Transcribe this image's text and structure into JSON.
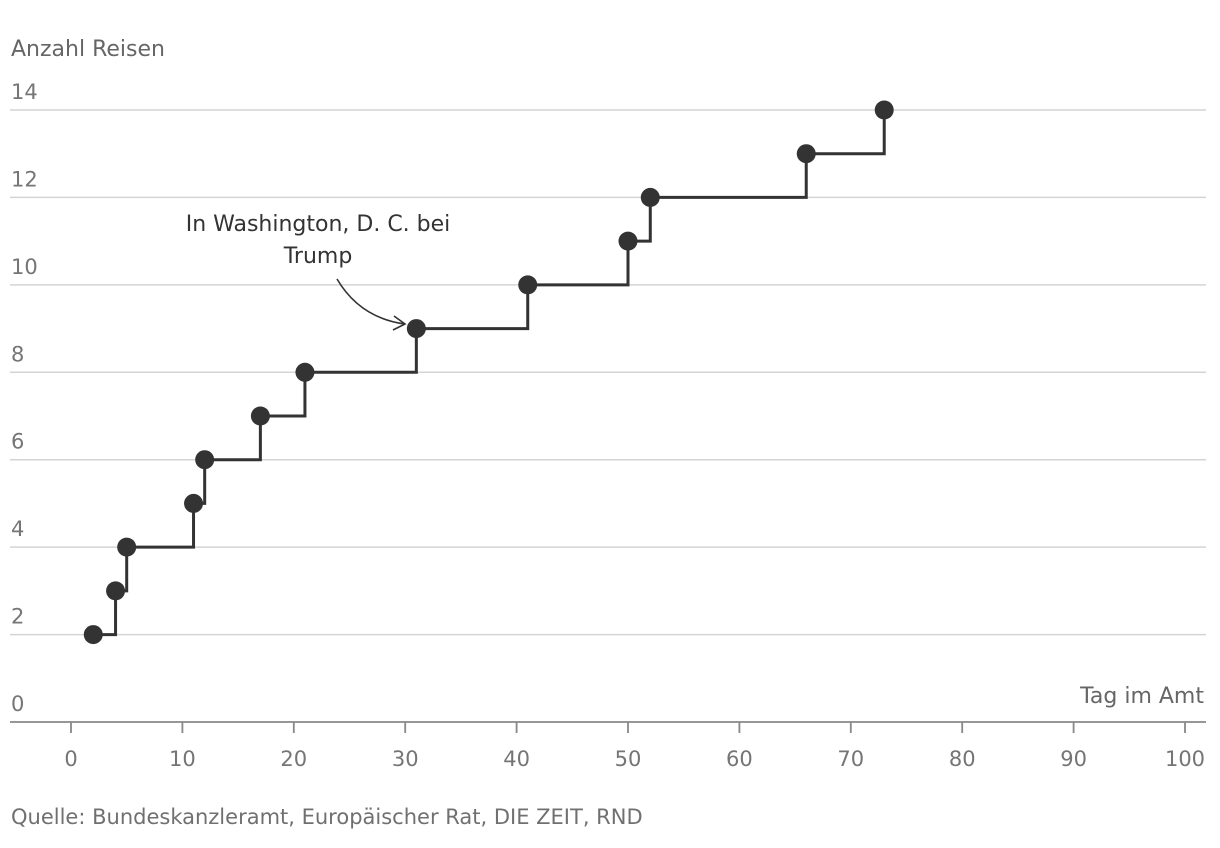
{
  "chart_data": {
    "type": "line",
    "step": "after",
    "title": "",
    "ylabel": "Anzahl Reisen",
    "xlabel": "Tag im Amt",
    "xlim": [
      0,
      100
    ],
    "ylim": [
      0,
      14
    ],
    "xticks": [
      0,
      10,
      20,
      30,
      40,
      50,
      60,
      70,
      80,
      90,
      100
    ],
    "yticks": [
      0,
      2,
      4,
      6,
      8,
      10,
      12,
      14
    ],
    "grid": true,
    "series": [
      {
        "name": "Reisen",
        "x": [
          2,
          4,
          5,
          11,
          12,
          17,
          21,
          31,
          41,
          50,
          52,
          66,
          73
        ],
        "y": [
          2,
          3,
          4,
          5,
          6,
          7,
          8,
          9,
          10,
          11,
          12,
          13,
          14
        ]
      }
    ],
    "annotations": [
      {
        "lines": [
          "In Washington, D. C. bei",
          "Trump"
        ],
        "x": 31,
        "y": 9
      }
    ],
    "source": "Quelle: Bundeskanzleramt, Europäischer Rat, DIE ZEIT, RND"
  },
  "colors": {
    "line": "#333333",
    "marker": "#333333",
    "grid": "#d4d4d4",
    "axis": "#888888",
    "tick_text": "#757575"
  }
}
